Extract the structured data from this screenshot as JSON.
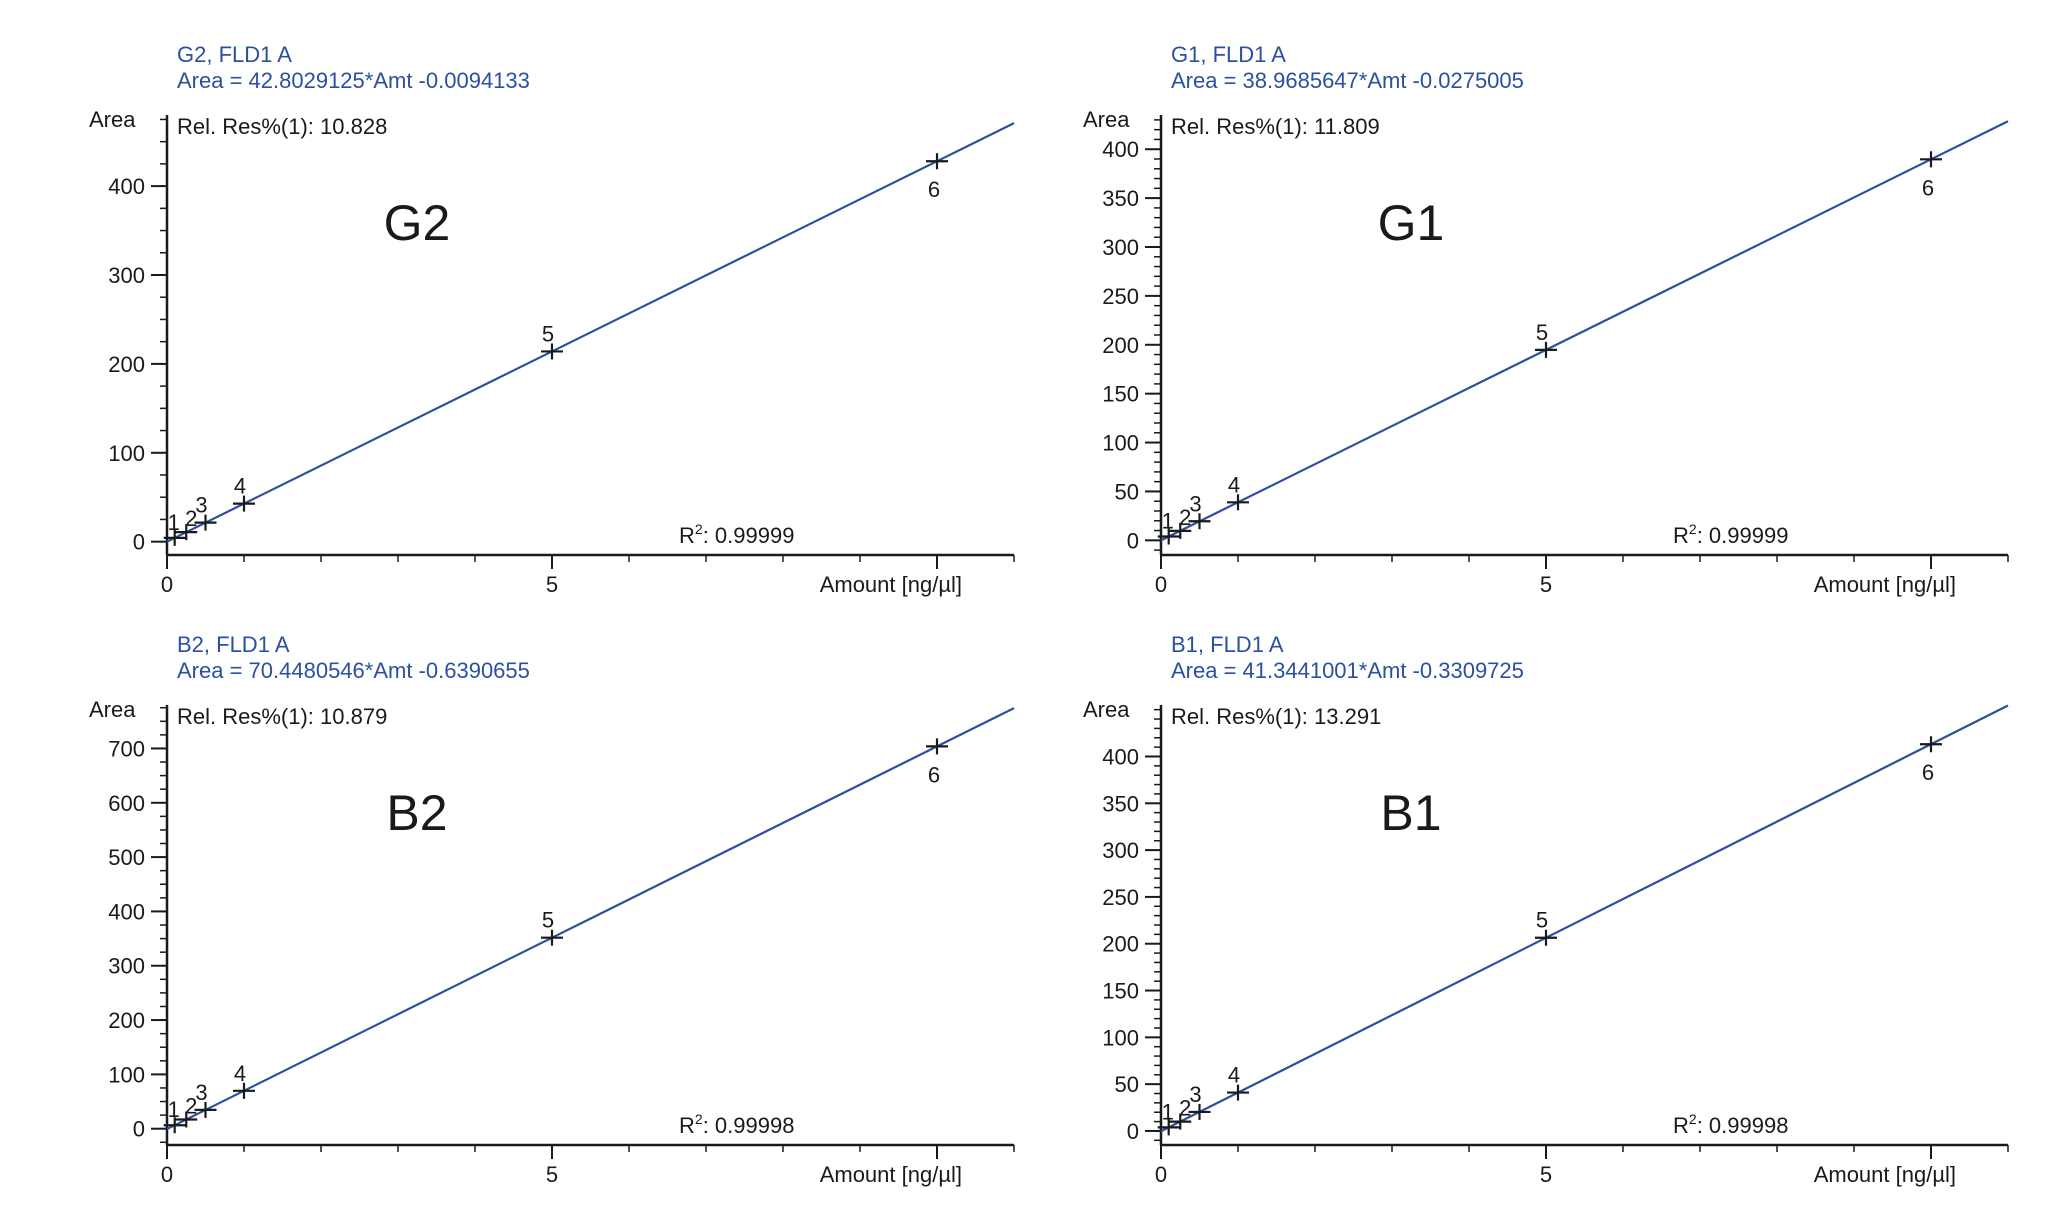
{
  "colors": {
    "line": "#2b50a0",
    "header": "#2b50a0",
    "axis": "#1a1a1a"
  },
  "chart_data": [
    {
      "type": "scatter",
      "header_title": "G2, FLD1 A",
      "equation": "Area = 42.8029125*Amt -0.0094133",
      "rel_res": "Rel. Res%(1): 10.828",
      "big_label": "G2",
      "r2_label": "R",
      "r2_sup": "2",
      "r2_value": ": 0.99999",
      "ylabel": "Area",
      "xlabel": "Amount [ng/µl]",
      "xlim": [
        0,
        11
      ],
      "ylim": [
        -15,
        480
      ],
      "xticks": [
        0,
        5,
        10
      ],
      "xtick_labels": [
        "0",
        "5",
        ""
      ],
      "yticks": [
        0,
        100,
        200,
        300,
        400
      ],
      "yminor": 25,
      "slope": 42.8029125,
      "intercept": -0.0094133,
      "line_x": [
        0,
        11
      ],
      "points": [
        {
          "label": "1",
          "x": 0.1,
          "y": 4.28
        },
        {
          "label": "2",
          "x": 0.25,
          "y": 10.7
        },
        {
          "label": "3",
          "x": 0.5,
          "y": 21.4
        },
        {
          "label": "4",
          "x": 1.0,
          "y": 42.8
        },
        {
          "label": "5",
          "x": 5.0,
          "y": 214.0
        },
        {
          "label": "6",
          "x": 10.0,
          "y": 428.0
        }
      ]
    },
    {
      "type": "scatter",
      "header_title": "G1, FLD1 A",
      "equation": "Area = 38.9685647*Amt -0.0275005",
      "rel_res": "Rel. Res%(1): 11.809",
      "big_label": "G1",
      "r2_label": "R",
      "r2_sup": "2",
      "r2_value": ": 0.99999",
      "ylabel": "Area",
      "xlabel": "Amount [ng/µl]",
      "xlim": [
        0,
        11
      ],
      "ylim": [
        -15,
        435
      ],
      "xticks": [
        0,
        5,
        10
      ],
      "xtick_labels": [
        "0",
        "5",
        ""
      ],
      "yticks": [
        0,
        50,
        100,
        150,
        200,
        250,
        300,
        350,
        400
      ],
      "yminor": 10,
      "slope": 38.9685647,
      "intercept": -0.0275005,
      "line_x": [
        0,
        11
      ],
      "points": [
        {
          "label": "1",
          "x": 0.1,
          "y": 3.9
        },
        {
          "label": "2",
          "x": 0.25,
          "y": 9.7
        },
        {
          "label": "3",
          "x": 0.5,
          "y": 19.5
        },
        {
          "label": "4",
          "x": 1.0,
          "y": 38.9
        },
        {
          "label": "5",
          "x": 5.0,
          "y": 194.8
        },
        {
          "label": "6",
          "x": 10.0,
          "y": 389.7
        }
      ]
    },
    {
      "type": "scatter",
      "header_title": "B2, FLD1 A",
      "equation": "Area = 70.4480546*Amt -0.6390655",
      "rel_res": "Rel. Res%(1): 10.879",
      "big_label": "B2",
      "r2_label": "R",
      "r2_sup": "2",
      "r2_value": ": 0.99998",
      "ylabel": "Area",
      "xlabel": "Amount [ng/µl]",
      "xlim": [
        0,
        11
      ],
      "ylim": [
        -30,
        780
      ],
      "xticks": [
        0,
        5,
        10
      ],
      "xtick_labels": [
        "0",
        "5",
        ""
      ],
      "yticks": [
        0,
        100,
        200,
        300,
        400,
        500,
        600,
        700
      ],
      "yminor": 25,
      "slope": 70.4480546,
      "intercept": -0.6390655,
      "line_x": [
        0,
        11
      ],
      "points": [
        {
          "label": "1",
          "x": 0.1,
          "y": 6.4
        },
        {
          "label": "2",
          "x": 0.25,
          "y": 17.0
        },
        {
          "label": "3",
          "x": 0.5,
          "y": 34.6
        },
        {
          "label": "4",
          "x": 1.0,
          "y": 69.8
        },
        {
          "label": "5",
          "x": 5.0,
          "y": 351.6
        },
        {
          "label": "6",
          "x": 10.0,
          "y": 703.8
        }
      ]
    },
    {
      "type": "scatter",
      "header_title": "B1, FLD1 A",
      "equation": "Area = 41.3441001*Amt -0.3309725",
      "rel_res": "Rel. Res%(1): 13.291",
      "big_label": "B1",
      "r2_label": "R",
      "r2_sup": "2",
      "r2_value": ": 0.99998",
      "ylabel": "Area",
      "xlabel": "Amount [ng/µl]",
      "xlim": [
        0,
        11
      ],
      "ylim": [
        -15,
        455
      ],
      "xticks": [
        0,
        5,
        10
      ],
      "xtick_labels": [
        "0",
        "5",
        ""
      ],
      "yticks": [
        0,
        50,
        100,
        150,
        200,
        250,
        300,
        350,
        400
      ],
      "yminor": 10,
      "slope": 41.3441001,
      "intercept": -0.3309725,
      "line_x": [
        0,
        11
      ],
      "points": [
        {
          "label": "1",
          "x": 0.1,
          "y": 3.8
        },
        {
          "label": "2",
          "x": 0.25,
          "y": 10.0
        },
        {
          "label": "3",
          "x": 0.5,
          "y": 20.3
        },
        {
          "label": "4",
          "x": 1.0,
          "y": 41.0
        },
        {
          "label": "5",
          "x": 5.0,
          "y": 206.4
        },
        {
          "label": "6",
          "x": 10.0,
          "y": 413.1
        }
      ]
    }
  ]
}
